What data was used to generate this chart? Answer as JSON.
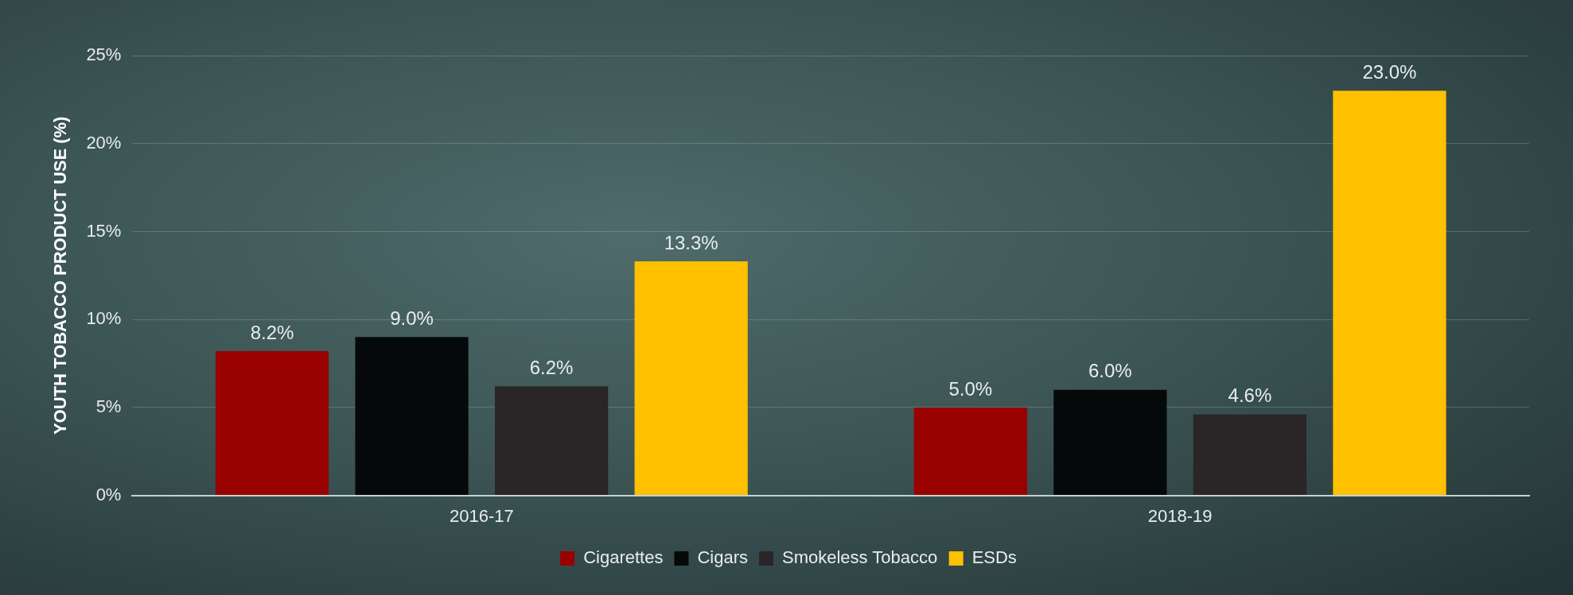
{
  "chart_data": {
    "type": "bar",
    "ylabel": "YOUTH TOBACCO PRODUCT USE (%)",
    "categories": [
      "2016-17",
      "2018-19"
    ],
    "series": [
      {
        "name": "Cigarettes",
        "color": "#990000",
        "values": [
          8.2,
          5.0
        ],
        "value_labels": [
          "8.2%",
          "5.0%"
        ]
      },
      {
        "name": "Cigars",
        "color": "#060909",
        "values": [
          9.0,
          6.0
        ],
        "value_labels": [
          "9.0%",
          "6.0%"
        ]
      },
      {
        "name": "Smokeless Tobacco",
        "color": "#2a2526",
        "values": [
          6.2,
          4.6
        ],
        "value_labels": [
          "6.2%",
          "4.6%"
        ]
      },
      {
        "name": "ESDs",
        "color": "#ffc000",
        "values": [
          13.3,
          23.0
        ],
        "value_labels": [
          "13.3%",
          "23.0%"
        ]
      }
    ],
    "ylim": [
      0,
      25
    ],
    "yticks": [
      {
        "value": 0,
        "label": "0%"
      },
      {
        "value": 5,
        "label": "5%"
      },
      {
        "value": 10,
        "label": "10%"
      },
      {
        "value": 15,
        "label": "15%"
      },
      {
        "value": 20,
        "label": "20%"
      },
      {
        "value": 25,
        "label": "25%"
      }
    ],
    "grid": "y",
    "legend": "bottom"
  }
}
